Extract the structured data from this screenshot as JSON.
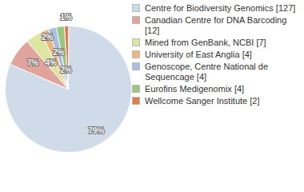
{
  "chart_data": {
    "type": "pie",
    "categories": [
      "Centre for Biodiversity Genomics [127]",
      "Canadian Centre for DNA Barcoding [12]",
      "Mined from GenBank, NCBI [7]",
      "University of East Anglia [4]",
      "Genoscope, Centre National de Sequencage [4]",
      "Eurofins Medigenomix [4]",
      "Wellcome Sanger Institute [2]"
    ],
    "values": [
      79,
      7,
      4,
      2,
      2,
      2,
      1
    ],
    "value_labels": [
      "79%",
      "7%",
      "4%",
      "2%",
      "2%",
      "2%",
      "1%"
    ],
    "colors": [
      "#cfdbe8",
      "#e0a49c",
      "#dde5a3",
      "#f1b47d",
      "#a9bfe1",
      "#9dc582",
      "#e07c4e"
    ],
    "data_labels": true,
    "legend": "right"
  }
}
